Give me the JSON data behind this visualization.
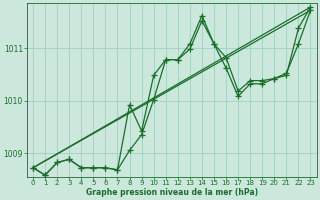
{
  "xlabel": "Graphe pression niveau de la mer (hPa)",
  "background_color": "#cce8dd",
  "grid_color": "#99ccbb",
  "line_color": "#1a6e2a",
  "text_color": "#1a6e2a",
  "ylim": [
    1008.55,
    1011.85
  ],
  "xlim": [
    -0.5,
    23.5
  ],
  "yticks": [
    1009,
    1010,
    1011
  ],
  "xticks": [
    0,
    1,
    2,
    3,
    4,
    5,
    6,
    7,
    8,
    9,
    10,
    11,
    12,
    13,
    14,
    15,
    16,
    17,
    18,
    19,
    20,
    21,
    22,
    23
  ],
  "series": [
    {
      "x": [
        0,
        1,
        2,
        3,
        4,
        5,
        6,
        7,
        8,
        9,
        10,
        11,
        12,
        13,
        14,
        15,
        16,
        17,
        18,
        19,
        20,
        21,
        22,
        23
      ],
      "y": [
        1008.72,
        1008.58,
        1008.82,
        1008.88,
        1008.72,
        1008.72,
        1008.72,
        1008.68,
        1009.92,
        1009.42,
        1010.48,
        1010.78,
        1010.78,
        1011.08,
        1011.62,
        1011.08,
        1010.82,
        1010.18,
        1010.38,
        1010.38,
        1010.42,
        1010.52,
        1011.08,
        1011.72
      ],
      "marker": "+",
      "markersize": 4,
      "linewidth": 0.9,
      "markeredgewidth": 0.9
    },
    {
      "x": [
        0,
        1,
        2,
        3,
        4,
        5,
        6,
        7,
        8,
        9,
        10,
        11,
        12,
        13,
        14,
        15,
        16,
        17,
        18,
        19,
        20,
        21,
        22,
        23
      ],
      "y": [
        1008.72,
        1008.58,
        1008.82,
        1008.88,
        1008.72,
        1008.72,
        1008.72,
        1008.68,
        1009.05,
        1009.35,
        1010.02,
        1010.78,
        1010.78,
        1010.98,
        1011.52,
        1011.08,
        1010.62,
        1010.08,
        1010.32,
        1010.32,
        1010.42,
        1010.48,
        1011.38,
        1011.78
      ],
      "marker": "+",
      "markersize": 4,
      "linewidth": 0.9,
      "markeredgewidth": 0.9
    },
    {
      "x": [
        0,
        23
      ],
      "y": [
        1008.72,
        1011.78
      ],
      "marker": null,
      "linewidth": 0.9
    },
    {
      "x": [
        0,
        23
      ],
      "y": [
        1008.72,
        1011.72
      ],
      "marker": null,
      "linewidth": 0.9
    }
  ]
}
